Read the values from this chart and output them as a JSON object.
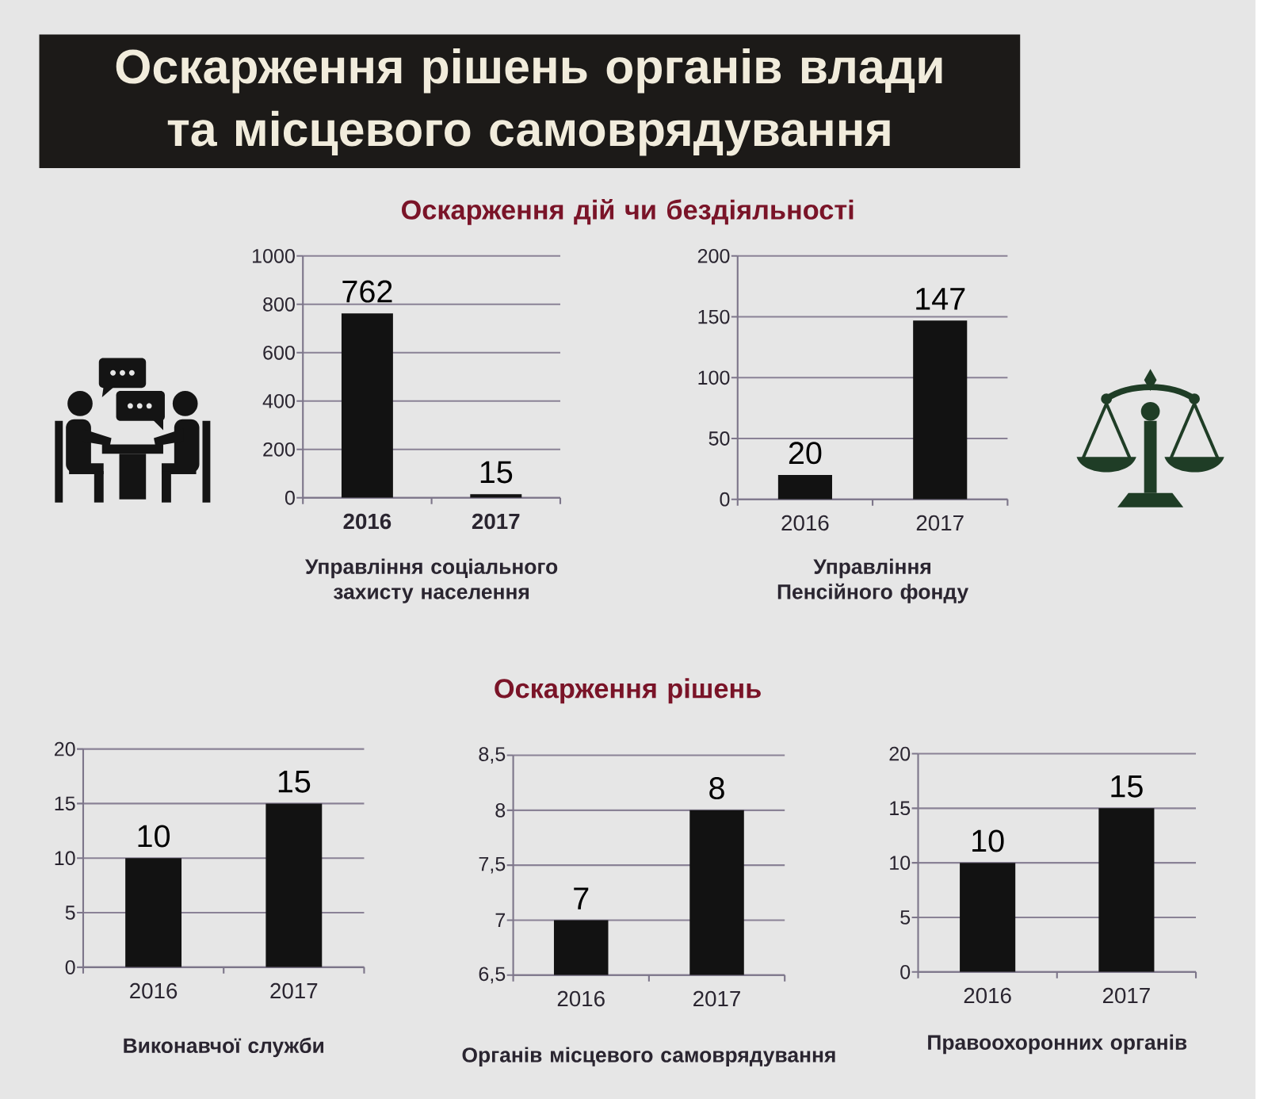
{
  "chart_data": [
    {
      "type": "other",
      "title": "Оскарження рішень органів влади та місцевого самоврядування"
    },
    {
      "type": "other",
      "title": "Оскарження дій чи бездіяльності"
    },
    {
      "type": "bar",
      "categories": [
        "2016",
        "2017"
      ],
      "values": [
        762,
        15
      ],
      "color": "#121212",
      "ylim": [
        0,
        1000
      ],
      "yticks": [
        0,
        200,
        400,
        600,
        800,
        1000
      ],
      "grid": "y",
      "data_labels": true,
      "xlabel": "Управління соціального захисту населення"
    },
    {
      "type": "bar",
      "categories": [
        "2016",
        "2017"
      ],
      "values": [
        20,
        147
      ],
      "color": "#121212",
      "ylim": [
        0,
        200
      ],
      "yticks": [
        0,
        50,
        100,
        150,
        200
      ],
      "grid": "y",
      "data_labels": true,
      "xlabel": "Управління Пенсійного фонду"
    },
    {
      "type": "other",
      "title": "Оскарження рішень"
    },
    {
      "type": "bar",
      "categories": [
        "2016",
        "2017"
      ],
      "values": [
        10,
        15
      ],
      "color": "#121212",
      "ylim": [
        0,
        20
      ],
      "yticks": [
        0,
        5,
        10,
        15,
        20
      ],
      "grid": "y",
      "data_labels": true,
      "xlabel": "Виконавчої служби"
    },
    {
      "type": "bar",
      "categories": [
        "2016",
        "2017"
      ],
      "values": [
        7,
        8
      ],
      "color": "#121212",
      "ylim": [
        6.5,
        8.5
      ],
      "yticks": [
        {
          "value": 6.5,
          "label": "6,5"
        },
        7,
        {
          "value": 7.5,
          "label": "7,5"
        },
        8,
        {
          "value": 8.5,
          "label": "8,5"
        }
      ],
      "grid": "y",
      "data_labels": true,
      "xlabel": "Органів місцевого самоврядування"
    },
    {
      "type": "bar",
      "categories": [
        "2016",
        "2017"
      ],
      "values": [
        10,
        15
      ],
      "color": "#121212",
      "ylim": [
        0,
        20
      ],
      "yticks": [
        0,
        5,
        10,
        15,
        20
      ],
      "grid": "y",
      "data_labels": true,
      "xlabel": "Правоохоронних органів"
    }
  ]
}
